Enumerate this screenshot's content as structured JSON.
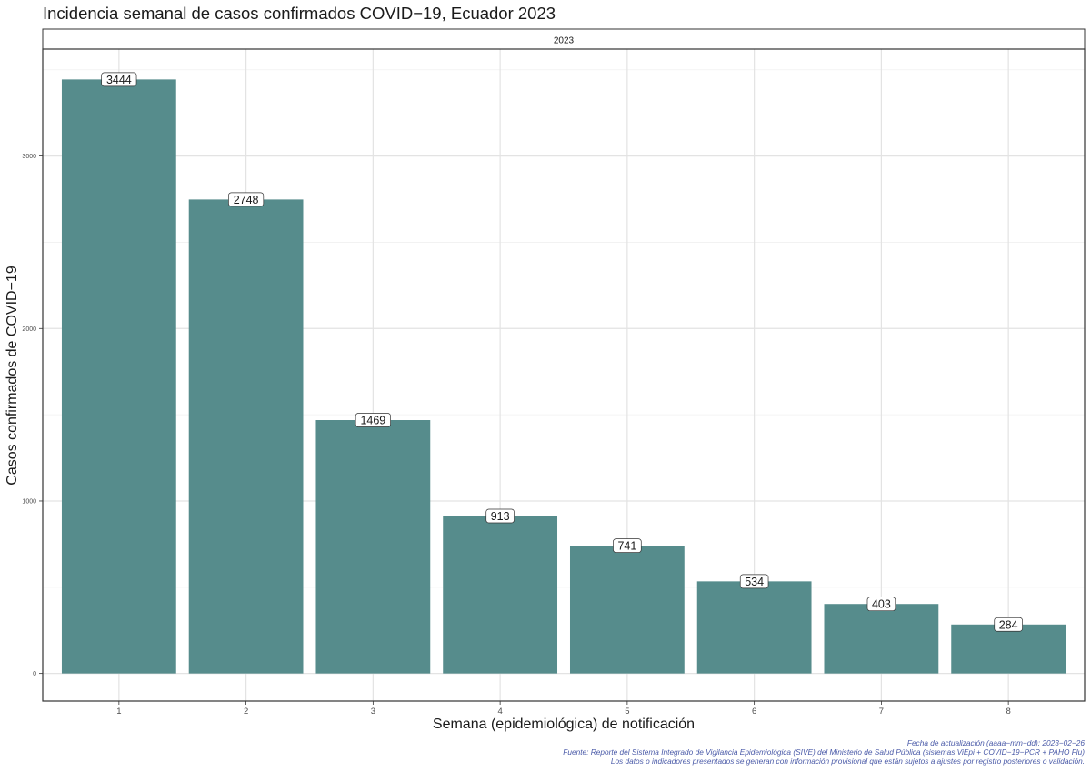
{
  "chart_data": {
    "type": "bar",
    "title": "Incidencia semanal de casos confirmados COVID−19, Ecuador 2023",
    "facet_label": "2023",
    "categories": [
      "1",
      "2",
      "3",
      "4",
      "5",
      "6",
      "7",
      "8"
    ],
    "values": [
      3444,
      2748,
      1469,
      913,
      741,
      534,
      403,
      284
    ],
    "data_labels": [
      "3444",
      "2748",
      "1469",
      "913",
      "741",
      "534",
      "403",
      "284"
    ],
    "xlabel": "Semana (epidemiológica) de notificación",
    "ylabel": "Casos confirmados de COVID−19",
    "yticks": [
      0,
      1000,
      2000,
      3000
    ],
    "ylim": [
      -160,
      3620
    ],
    "grid": true,
    "legend": "none",
    "bar_color": "#568c8c"
  },
  "captions": {
    "line1": "Fecha de actualización (aaaa−mm−dd): 2023−02−26",
    "line2": "Fuente: Reporte del Sistema Integrado de Vigilancia Epidemiológica (SIVE) del Ministerio de Salud Pública (sistemas ViEpi + COVID−19−PCR + PAHO Flu)",
    "line3": "Los datos o indicadores presentados se generan con información provisional que están sujetos a ajustes por registro posteriores o validación."
  }
}
